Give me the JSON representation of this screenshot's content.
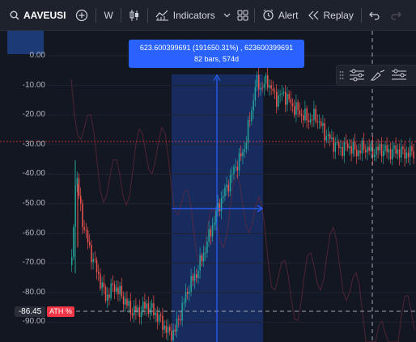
{
  "toolbar": {
    "symbol": "AAVEUSI",
    "interval": "W",
    "indicators_label": "Indicators",
    "alert_label": "Alert",
    "replay_label": "Replay"
  },
  "price_axis": {
    "ticks": [
      "0.00",
      "-10.00",
      "-20.00",
      "-30.00",
      "-40.00",
      "-50.00",
      "-60.00",
      "-70.00",
      "-80.00",
      "-90.00"
    ],
    "current_value": "-86.45",
    "ath_label": "ATH %"
  },
  "measure": {
    "line1": "623.600399691 (191650.31%) , 623600399691",
    "line2": "82 bars, 574d"
  },
  "colors": {
    "background": "#131722",
    "up": "#26a69a",
    "down": "#ef5350",
    "measure_fill": "#2962ff",
    "ath_badge": "#f23645"
  },
  "icons": [
    "search-icon",
    "add-symbol-icon",
    "candles-icon",
    "indicators-icon",
    "templates-icon",
    "alert-icon",
    "replay-icon",
    "undo-icon",
    "redo-icon",
    "drag-handle-icon",
    "settings-lines-icon",
    "pen-icon"
  ]
}
